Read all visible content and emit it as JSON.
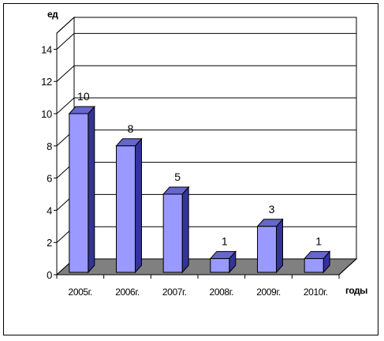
{
  "chart_data": {
    "type": "bar",
    "title": "",
    "xlabel": "годы",
    "ylabel": "ед",
    "categories": [
      "2005г.",
      "2006г.",
      "2007г.",
      "2008г.",
      "2009г.",
      "2010г."
    ],
    "series": [
      {
        "values": [
          10,
          8,
          5,
          1,
          3,
          1
        ]
      }
    ],
    "yticks": [
      0,
      2,
      4,
      6,
      8,
      10,
      12,
      14
    ],
    "ylim": [
      0,
      15
    ],
    "grid": true,
    "legend": "none",
    "bar_3d": true,
    "show_data_labels": true,
    "colors": {
      "bar_front": "#9999ff",
      "bar_side": "#333399",
      "bar_top": "#6666cc",
      "back_wall": "#ffffff",
      "floor": "#808080",
      "side_wall": "#ffffff"
    }
  }
}
